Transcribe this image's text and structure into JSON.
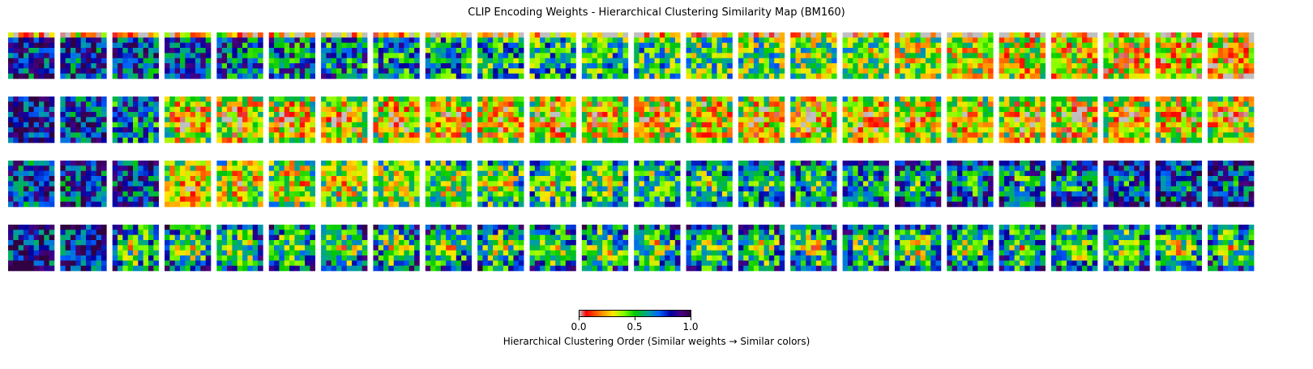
{
  "chart_data": {
    "type": "heatmap",
    "title": "CLIP Encoding Weights - Hierarchical Clustering Similarity Map (BM160)",
    "grid": {
      "rows": 4,
      "cols": 24,
      "tile_resolution": 9
    },
    "colormap": "nipy_spectral",
    "row_bias": [
      0.78,
      0.12,
      0.55,
      0.32
    ],
    "colorbar": {
      "label": "Hierarchical Clustering Order (Similar weights → Similar colors)",
      "ticks": [
        "0.0",
        "0.5",
        "1.0"
      ],
      "range": [
        0.0,
        1.0
      ]
    }
  }
}
